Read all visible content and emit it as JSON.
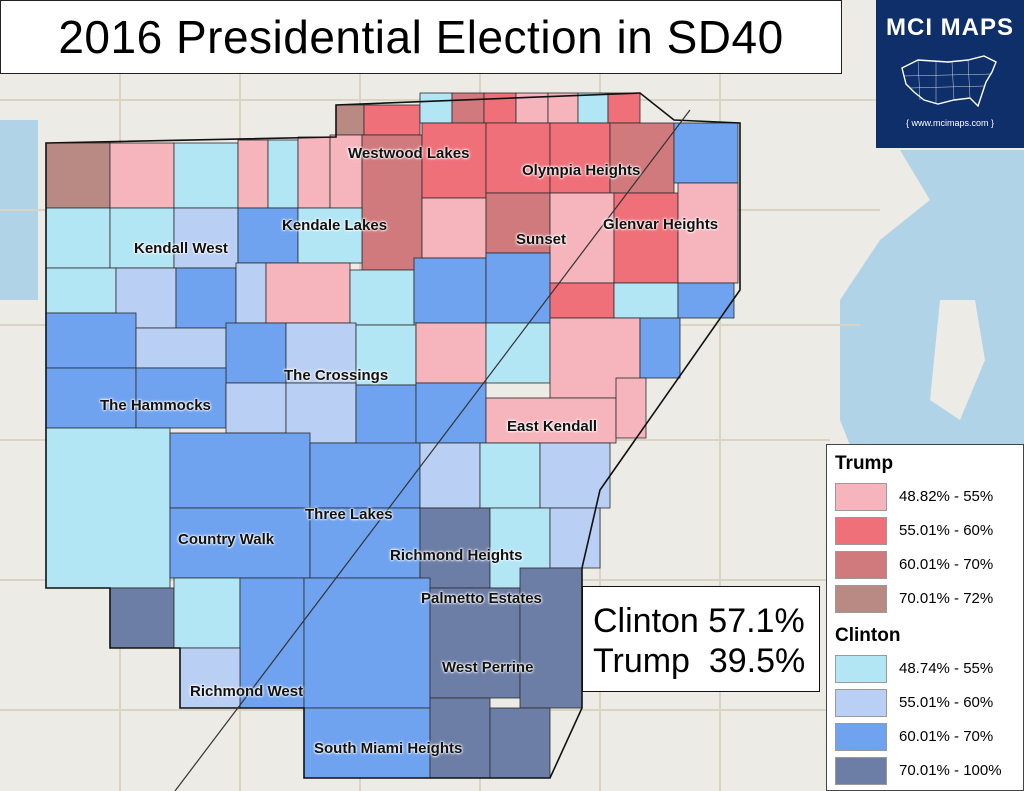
{
  "title": "2016 Presidential Election in SD40",
  "brand": {
    "name": "MCI MAPS",
    "url": "{ www.mcimaps.com }"
  },
  "places": [
    "Westwood Lakes",
    "Olympia Heights",
    "Kendale Lakes",
    "Glenvar Heights",
    "Kendall West",
    "Sunset",
    "The Crossings",
    "The Hammocks",
    "East Kendall",
    "Three Lakes",
    "Country Walk",
    "Richmond Heights",
    "Palmetto Estates",
    "West Perrine",
    "Richmond West",
    "South Miami Heights"
  ],
  "results": {
    "clinton": "Clinton 57.1%",
    "trump": "Trump  39.5%"
  },
  "legend": {
    "trump_title": "Trump",
    "trump": [
      {
        "label": "48.82% - 55%",
        "color": "#f6b5bd"
      },
      {
        "label": "55.01% - 60%",
        "color": "#ef7079"
      },
      {
        "label": "60.01% - 70%",
        "color": "#d07a7e"
      },
      {
        "label": "70.01% - 72%",
        "color": "#b98a84"
      }
    ],
    "clinton_title": "Clinton",
    "clinton": [
      {
        "label": "48.74% - 55%",
        "color": "#b3e6f5"
      },
      {
        "label": "55.01% - 60%",
        "color": "#b9cff3"
      },
      {
        "label": "60.01% - 70%",
        "color": "#6fa3ef"
      },
      {
        "label": "70.01% - 100%",
        "color": "#6d7ea6"
      }
    ]
  },
  "colors": {
    "water": "#b0d3e8",
    "land": "#ecebe6",
    "brand_bg": "#0f2f6b"
  }
}
